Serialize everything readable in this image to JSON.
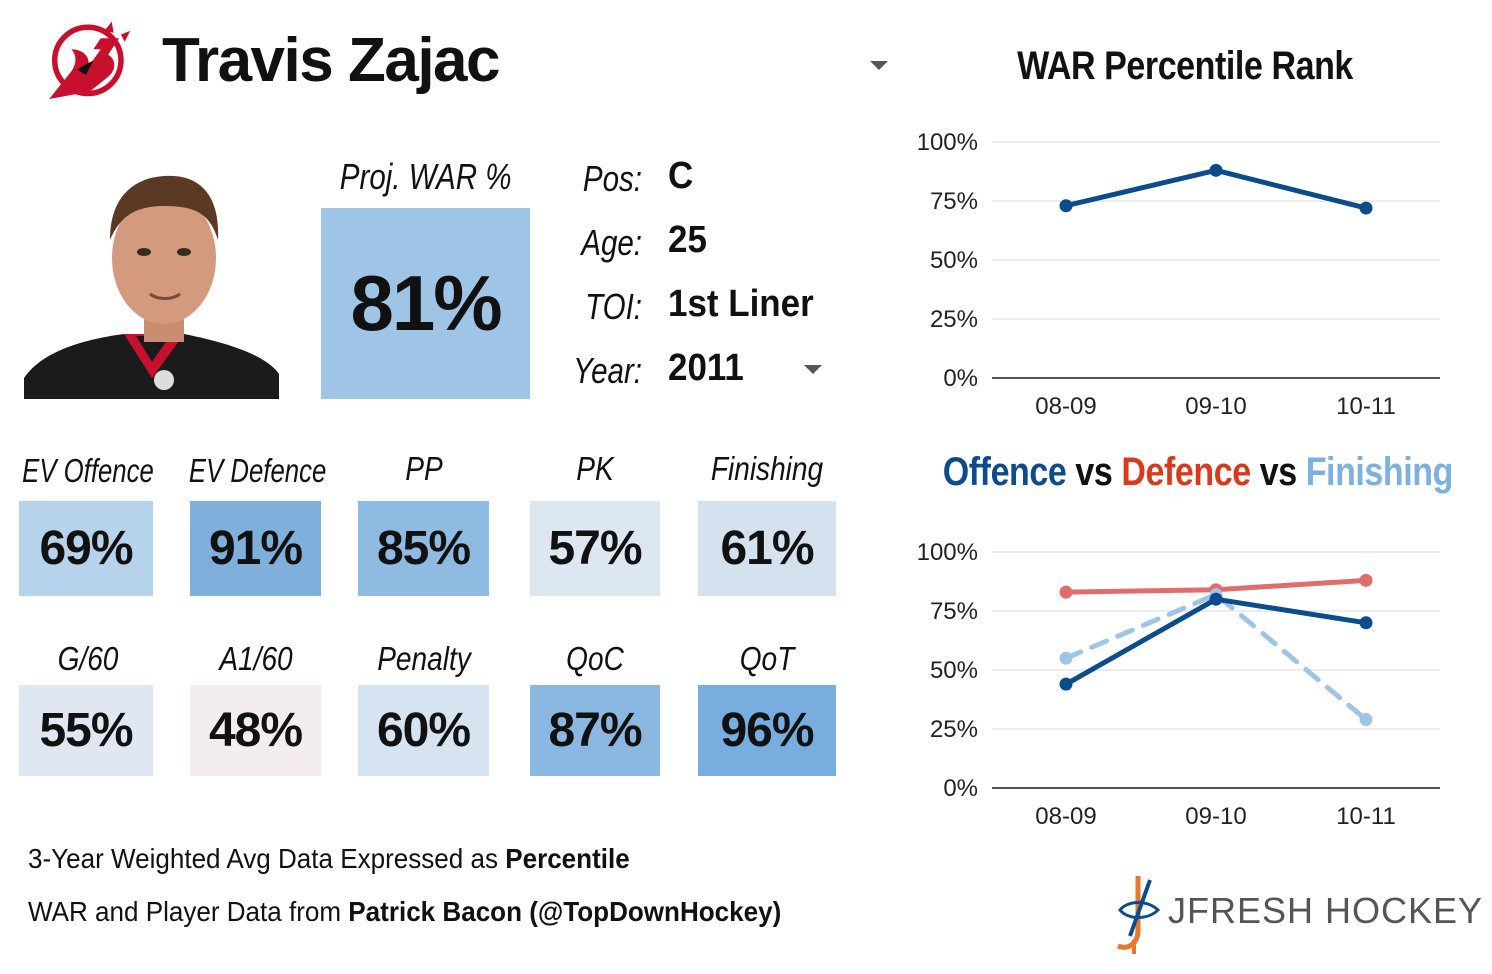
{
  "header": {
    "player_name": "Travis Zajac",
    "team_logo_icon": "new-jersey-devils-logo-icon"
  },
  "projection": {
    "label": "Proj. WAR %",
    "value": "81%",
    "color": "#9fc5e6"
  },
  "info": [
    {
      "label": "Pos:",
      "value": "C"
    },
    {
      "label": "Age:",
      "value": "25"
    },
    {
      "label": "TOI:",
      "value": "1st Liner"
    },
    {
      "label": "Year:",
      "value": "2011"
    }
  ],
  "stats_row1": [
    {
      "label": "EV Offence",
      "value": "69%",
      "color": "#b7d3eb"
    },
    {
      "label": "EV Defence",
      "value": "91%",
      "color": "#7fb0dc"
    },
    {
      "label": "PP",
      "value": "85%",
      "color": "#8fbae2"
    },
    {
      "label": "PK",
      "value": "57%",
      "color": "#dce7f2"
    },
    {
      "label": "Finishing",
      "value": "61%",
      "color": "#d4e2ef"
    }
  ],
  "stats_row2": [
    {
      "label": "G/60",
      "value": "55%",
      "color": "#dfe8f2"
    },
    {
      "label": "A1/60",
      "value": "48%",
      "color": "#f3edee"
    },
    {
      "label": "Penalty",
      "value": "60%",
      "color": "#d6e3f0"
    },
    {
      "label": "QoC",
      "value": "87%",
      "color": "#8ab8e1"
    },
    {
      "label": "QoT",
      "value": "96%",
      "color": "#78ade0"
    }
  ],
  "footer": {
    "line1_prefix": "3-Year Weighted Avg Data Expressed as ",
    "line1_bold": "Percentile",
    "line2_prefix": "WAR and Player Data from ",
    "line2_bold": "Patrick Bacon (@TopDownHockey)",
    "brand": "JFRESH HOCKEY"
  },
  "chart_titles": {
    "war": "WAR Percentile Rank",
    "ovd_offence": "Offence",
    "ovd_vs1": " vs ",
    "ovd_defence": "Defence",
    "ovd_vs2": " vs ",
    "ovd_finishing": "Finishing"
  },
  "chart_data": [
    {
      "type": "line",
      "title": "WAR Percentile Rank",
      "categories": [
        "08-09",
        "09-10",
        "10-11"
      ],
      "ylim": [
        0,
        100
      ],
      "yticks": [
        "0%",
        "25%",
        "50%",
        "75%",
        "100%"
      ],
      "grid": true,
      "series": [
        {
          "color": "#0d4c8c",
          "dashed": false,
          "values": [
            73,
            88,
            72
          ]
        }
      ]
    },
    {
      "type": "line",
      "title": "Offence vs Defence vs Finishing",
      "categories": [
        "08-09",
        "09-10",
        "10-11"
      ],
      "ylim": [
        0,
        100
      ],
      "yticks": [
        "0%",
        "25%",
        "50%",
        "75%",
        "100%"
      ],
      "grid": true,
      "series": [
        {
          "name": "Defence",
          "color": "#e06c6c",
          "dashed": false,
          "values": [
            83,
            84,
            88
          ]
        },
        {
          "name": "Finishing",
          "color": "#9fc5e6",
          "dashed": true,
          "values": [
            55,
            82,
            29
          ]
        },
        {
          "name": "Offence",
          "color": "#0d4c8c",
          "dashed": false,
          "values": [
            44,
            80,
            70
          ]
        }
      ]
    }
  ]
}
